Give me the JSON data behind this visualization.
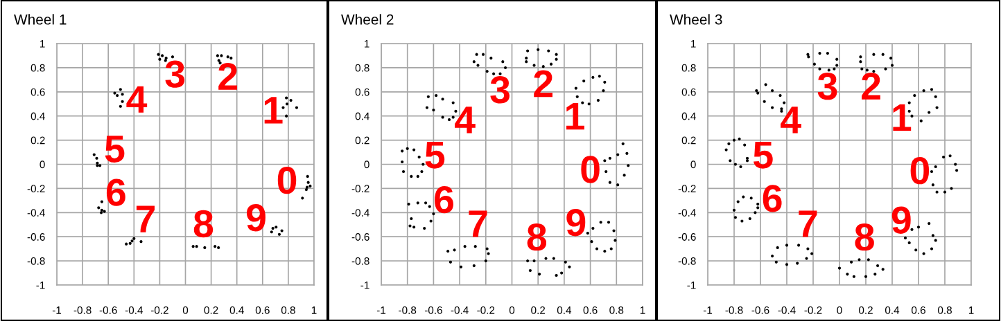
{
  "chart_data": [
    {
      "type": "scatter",
      "title": "Wheel 1",
      "color": "#000000",
      "marker": "circle",
      "grid": true,
      "xlim": [
        -1,
        1
      ],
      "ylim": [
        -1,
        1
      ],
      "xticks": [
        -1,
        -0.8,
        -0.6,
        -0.4,
        -0.2,
        0,
        0.2,
        0.4,
        0.6,
        0.8,
        1
      ],
      "yticks": [
        -1,
        -0.8,
        -0.6,
        -0.4,
        -0.2,
        0,
        0.2,
        0.4,
        0.6,
        0.8,
        1
      ],
      "x": [
        -0.21,
        -0.18,
        -0.15,
        -0.1,
        -0.2,
        -0.155,
        0.25,
        0.28,
        0.33,
        0.355,
        0.26,
        0.27,
        -0.55,
        -0.505,
        -0.49,
        -0.49,
        -0.505,
        -0.53,
        0.785,
        0.82,
        0.76,
        0.79,
        0.865,
        0.785,
        -0.71,
        -0.69,
        -0.685,
        -0.665,
        -0.685,
        0.95,
        0.955,
        0.946,
        0.97,
        0.91,
        0.94,
        -0.65,
        -0.675,
        -0.65,
        -0.63,
        -0.655,
        -0.46,
        -0.415,
        -0.4,
        -0.345,
        -0.43,
        0.06,
        0.087,
        0.15,
        0.23,
        0.257,
        0.67,
        0.705,
        0.73,
        0.75,
        0.68
      ],
      "values": [
        0.91,
        0.9,
        0.88,
        0.89,
        0.87,
        0.86,
        0.9,
        0.9,
        0.89,
        0.88,
        0.86,
        0.84,
        0.59,
        0.62,
        0.58,
        0.52,
        0.48,
        0.57,
        0.55,
        0.53,
        0.47,
        0.5,
        0.47,
        0.4,
        0.08,
        0.05,
        0.01,
        -0.01,
        -0.01,
        -0.1,
        -0.15,
        -0.19,
        -0.18,
        -0.28,
        -0.21,
        -0.31,
        -0.36,
        -0.38,
        -0.39,
        -0.4,
        -0.66,
        -0.635,
        -0.615,
        -0.64,
        -0.655,
        -0.68,
        -0.68,
        -0.69,
        -0.68,
        -0.69,
        -0.56,
        -0.52,
        -0.58,
        -0.55,
        -0.53
      ],
      "annotations": [
        "3",
        "2",
        "4",
        "1",
        "5",
        "0",
        "6",
        "7",
        "8",
        "9"
      ]
    },
    {
      "type": "scatter",
      "title": "Wheel 2",
      "color": "#000000",
      "marker": "circle",
      "grid": true,
      "xlim": [
        -1,
        1
      ],
      "ylim": [
        -1,
        1
      ],
      "xticks": [
        -1,
        -0.8,
        -0.6,
        -0.4,
        -0.2,
        0,
        0.2,
        0.4,
        0.6,
        0.8,
        1
      ],
      "yticks": [
        -1,
        -0.8,
        -0.6,
        -0.4,
        -0.2,
        0,
        0.2,
        0.4,
        0.6,
        0.8,
        1
      ],
      "x": [
        -0.29,
        -0.27,
        -0.22,
        -0.26,
        -0.16,
        -0.19,
        -0.14,
        -0.09,
        -0.07,
        -0.05,
        0.11,
        0.11,
        0.12,
        0.17,
        0.2,
        0.24,
        0.28,
        0.3,
        0.34,
        0.34,
        0.49,
        0.5,
        0.54,
        0.55,
        0.59,
        0.62,
        0.67,
        0.66,
        0.71,
        0.7,
        -0.65,
        -0.64,
        -0.6,
        -0.58,
        -0.53,
        -0.53,
        -0.48,
        -0.45,
        -0.45,
        -0.43,
        -0.84,
        -0.8,
        -0.75,
        -0.71,
        -0.84,
        -0.68,
        -0.83,
        -0.77,
        -0.72,
        -0.69,
        0.71,
        0.75,
        0.81,
        0.85,
        0.88,
        0.89,
        0.72,
        0.75,
        0.81,
        0.86,
        -0.79,
        -0.72,
        -0.66,
        -0.63,
        -0.6,
        -0.62,
        -0.67,
        -0.75,
        -0.78,
        -0.77,
        -0.49,
        -0.44,
        -0.36,
        -0.28,
        -0.19,
        -0.18,
        -0.2,
        -0.29,
        -0.39,
        -0.47,
        0.12,
        0.17,
        0.14,
        0.21,
        0.26,
        0.32,
        0.34,
        0.38,
        0.41,
        0.44,
        0.58,
        0.62,
        0.61,
        0.65,
        0.68,
        0.71,
        0.74,
        0.76,
        0.78,
        0.79
      ],
      "values": [
        0.85,
        0.91,
        0.91,
        0.82,
        0.88,
        0.77,
        0.75,
        0.75,
        0.85,
        0.8,
        0.88,
        0.85,
        0.94,
        0.82,
        0.95,
        0.81,
        0.94,
        0.83,
        0.91,
        0.87,
        0.63,
        0.56,
        0.51,
        0.69,
        0.5,
        0.72,
        0.73,
        0.53,
        0.68,
        0.61,
        0.47,
        0.56,
        0.45,
        0.57,
        0.39,
        0.54,
        0.37,
        0.39,
        0.51,
        0.44,
        0.11,
        0.13,
        0.12,
        0.06,
        0.02,
        0.0,
        -0.06,
        -0.1,
        -0.1,
        -0.06,
        0.03,
        0.05,
        0.08,
        0.17,
        0.09,
        -0.01,
        -0.06,
        -0.15,
        -0.17,
        -0.09,
        -0.33,
        -0.32,
        -0.32,
        -0.35,
        -0.41,
        -0.47,
        -0.53,
        -0.52,
        -0.51,
        -0.45,
        -0.72,
        -0.71,
        -0.68,
        -0.68,
        -0.7,
        -0.74,
        -0.8,
        -0.84,
        -0.85,
        -0.81,
        -0.8,
        -0.8,
        -0.88,
        -0.91,
        -0.78,
        -0.78,
        -0.92,
        -0.9,
        -0.81,
        -0.85,
        -0.57,
        -0.53,
        -0.64,
        -0.7,
        -0.48,
        -0.72,
        -0.48,
        -0.7,
        -0.55,
        -0.63
      ],
      "annotations": [
        "3",
        "2",
        "1",
        "4",
        "5",
        "0",
        "6",
        "7",
        "8",
        "9"
      ]
    },
    {
      "type": "scatter",
      "title": "Wheel 3",
      "color": "#000000",
      "marker": "circle",
      "grid": true,
      "xlim": [
        -1,
        1
      ],
      "ylim": [
        -1,
        1
      ],
      "xticks": [
        -1,
        -0.8,
        -0.6,
        -0.4,
        -0.2,
        0,
        0.2,
        0.4,
        0.6,
        0.8,
        1
      ],
      "yticks": [
        -1,
        -0.8,
        -0.6,
        -0.4,
        -0.2,
        0,
        0.2,
        0.4,
        0.6,
        0.8,
        1
      ],
      "x": [
        -0.24,
        -0.235,
        -0.19,
        -0.15,
        -0.09,
        -0.02,
        -0.02,
        -0.04,
        -0.08,
        -0.15,
        0.16,
        0.16,
        0.17,
        0.21,
        0.26,
        0.26,
        0.33,
        0.35,
        0.39,
        0.4,
        0.53,
        0.53,
        0.55,
        0.57,
        0.62,
        0.64,
        0.68,
        0.7,
        0.73,
        0.74,
        -0.63,
        -0.62,
        -0.56,
        -0.51,
        -0.57,
        -0.51,
        -0.45,
        -0.42,
        -0.44,
        -0.44,
        -0.86,
        -0.84,
        -0.8,
        -0.76,
        -0.72,
        -0.83,
        -0.79,
        -0.75,
        -0.7,
        -0.7,
        0.7,
        0.73,
        0.79,
        0.84,
        0.88,
        0.89,
        0.71,
        0.74,
        0.8,
        0.85,
        -0.8,
        -0.77,
        -0.73,
        -0.67,
        -0.62,
        -0.62,
        -0.64,
        -0.68,
        -0.74,
        -0.79,
        -0.51,
        -0.47,
        -0.48,
        -0.4,
        -0.4,
        -0.32,
        -0.31,
        -0.25,
        -0.24,
        -0.21,
        0.0,
        0.06,
        0.09,
        0.11,
        0.15,
        0.2,
        0.22,
        0.27,
        0.29,
        0.33,
        0.5,
        0.53,
        0.55,
        0.58,
        0.6,
        0.64,
        0.68,
        0.7,
        0.71,
        0.73
      ],
      "values": [
        0.91,
        0.89,
        0.83,
        0.92,
        0.92,
        0.87,
        0.82,
        0.79,
        0.78,
        0.79,
        0.89,
        0.85,
        0.79,
        0.78,
        0.91,
        0.77,
        0.91,
        0.79,
        0.88,
        0.82,
        0.44,
        0.51,
        0.4,
        0.57,
        0.36,
        0.61,
        0.43,
        0.62,
        0.56,
        0.47,
        0.61,
        0.59,
        0.66,
        0.61,
        0.52,
        0.47,
        0.57,
        0.51,
        0.46,
        0.44,
        0.12,
        0.17,
        0.2,
        0.21,
        0.16,
        0.03,
        0.0,
        -0.02,
        0.05,
        0.03,
        -0.06,
        -0.02,
        0.06,
        0.07,
        0.0,
        -0.05,
        -0.17,
        -0.23,
        -0.23,
        -0.2,
        -0.38,
        -0.31,
        -0.27,
        -0.28,
        -0.33,
        -0.36,
        -0.4,
        -0.45,
        -0.47,
        -0.44,
        -0.76,
        -0.69,
        -0.81,
        -0.83,
        -0.67,
        -0.82,
        -0.67,
        -0.78,
        -0.7,
        -0.74,
        -0.86,
        -0.91,
        -0.81,
        -0.93,
        -0.79,
        -0.93,
        -0.79,
        -0.91,
        -0.84,
        -0.87,
        -0.61,
        -0.65,
        -0.54,
        -0.71,
        -0.52,
        -0.74,
        -0.49,
        -0.7,
        -0.59,
        -0.63
      ],
      "annotations": [
        "3",
        "2",
        "1",
        "4",
        "5",
        "0",
        "6",
        "7",
        "8",
        "9"
      ]
    }
  ]
}
